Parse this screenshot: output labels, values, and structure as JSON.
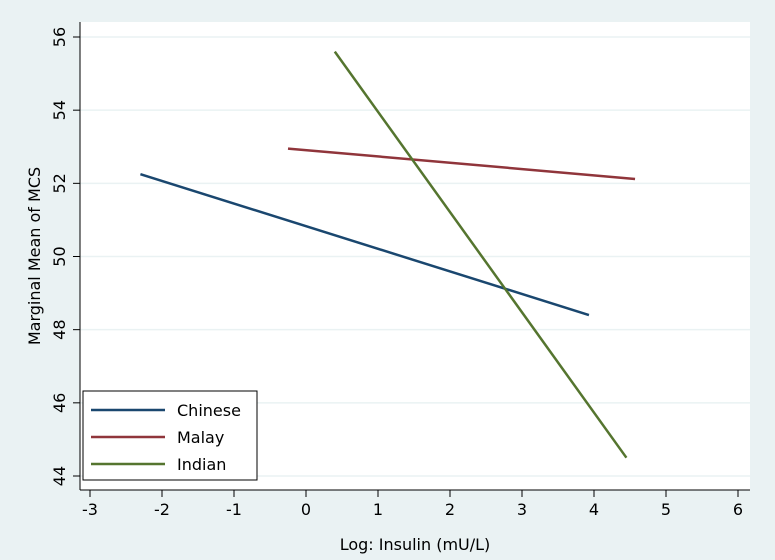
{
  "chart_data": {
    "type": "line",
    "title": "",
    "xlabel": "Log: Insulin (mU/L)",
    "ylabel": "Marginal Mean of MCS",
    "xlim": [
      -3,
      6
    ],
    "ylim": [
      44,
      56
    ],
    "xticks": [
      -3,
      -2,
      -1,
      0,
      1,
      2,
      3,
      4,
      5,
      6
    ],
    "yticks": [
      44,
      46,
      48,
      50,
      52,
      54,
      56
    ],
    "grid": true,
    "legend_position": "bottom-left",
    "series": [
      {
        "name": "Chinese",
        "color": "#1a476f",
        "x": [
          -2.3,
          3.93
        ],
        "y": [
          52.25,
          48.4
        ]
      },
      {
        "name": "Malay",
        "color": "#90353b",
        "x": [
          -0.25,
          4.57
        ],
        "y": [
          52.95,
          52.12
        ]
      },
      {
        "name": "Indian",
        "color": "#55752f",
        "x": [
          0.4,
          4.45
        ],
        "y": [
          55.6,
          44.5
        ]
      }
    ]
  }
}
